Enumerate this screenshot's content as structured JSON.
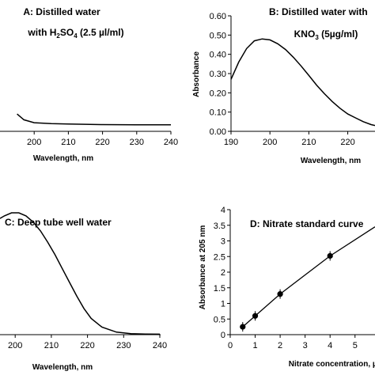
{
  "chart_data": [
    {
      "id": "A",
      "type": "line",
      "title_line1": "A: Distilled water",
      "title_line2_prefix": "with H",
      "title_line2_sub1": "2",
      "title_line2_mid": "SO",
      "title_line2_sub2": "4",
      "title_line2_suffix": " (2.5 µl/ml)",
      "xlabel": "Wavelength, nm",
      "ylabel": "",
      "x_ticks": [
        "200",
        "210",
        "220",
        "230",
        "240"
      ],
      "xlim": [
        190,
        240
      ],
      "ylim": [
        0,
        0.6
      ],
      "series": [
        {
          "x": [
            195,
            197,
            200,
            205,
            210,
            220,
            230,
            240
          ],
          "y": [
            0.09,
            0.06,
            0.045,
            0.04,
            0.038,
            0.035,
            0.034,
            0.034
          ]
        }
      ]
    },
    {
      "id": "B",
      "type": "line",
      "title_line1": "B: Distilled water with",
      "title_line2_prefix": "KNO",
      "title_line2_sub1": "3",
      "title_line2_suffix": " (5µg/ml)",
      "xlabel": "Wavelength, nm",
      "ylabel": "Absorbance",
      "x_ticks": [
        "190",
        "200",
        "210",
        "220"
      ],
      "y_ticks": [
        "0.00",
        "0.10",
        "0.20",
        "0.30",
        "0.40",
        "0.50",
        "0.60"
      ],
      "xlim": [
        190,
        227
      ],
      "ylim": [
        0,
        0.6
      ],
      "series": [
        {
          "x": [
            190,
            192,
            194,
            196,
            198,
            200,
            202,
            204,
            206,
            208,
            210,
            212,
            214,
            216,
            218,
            220,
            222,
            224,
            226,
            227
          ],
          "y": [
            0.27,
            0.36,
            0.43,
            0.47,
            0.48,
            0.475,
            0.455,
            0.425,
            0.385,
            0.34,
            0.29,
            0.24,
            0.195,
            0.155,
            0.12,
            0.09,
            0.07,
            0.05,
            0.035,
            0.03
          ]
        }
      ]
    },
    {
      "id": "C",
      "type": "line",
      "title": "C: Deep tube well water",
      "xlabel": "Wavelength, nm",
      "ylabel": "",
      "x_ticks": [
        "200",
        "210",
        "220",
        "230",
        "240"
      ],
      "xlim": [
        195.8,
        240
      ],
      "ylim": [
        0,
        1
      ],
      "series": [
        {
          "x": [
            195.8,
            197,
            199,
            201,
            203,
            205,
            207,
            209,
            211,
            213,
            215,
            217,
            219,
            221,
            224,
            228,
            232,
            236,
            240
          ],
          "y": [
            0.93,
            0.95,
            0.975,
            0.975,
            0.95,
            0.9,
            0.83,
            0.74,
            0.64,
            0.53,
            0.42,
            0.31,
            0.21,
            0.13,
            0.06,
            0.02,
            0.008,
            0.005,
            0.004
          ]
        }
      ]
    },
    {
      "id": "D",
      "type": "scatter",
      "title": "D: Nitrate standard curve",
      "xlabel": "Nitrate concentration, µg/ml",
      "ylabel": "Absorbance at 205 nm",
      "x_ticks": [
        "0",
        "1",
        "2",
        "3",
        "4",
        "5"
      ],
      "y_ticks": [
        "0",
        "0.5",
        "1",
        "1.5",
        "2",
        "2.5",
        "3",
        "3.5",
        "4"
      ],
      "xlim": [
        0,
        5.8
      ],
      "ylim": [
        0,
        4
      ],
      "series": [
        {
          "x": [
            0.5,
            1,
            2,
            4
          ],
          "y": [
            0.25,
            0.6,
            1.3,
            2.52
          ],
          "fit_line": [
            [
              0.5,
              0.25
            ],
            [
              1,
              0.6
            ],
            [
              2,
              1.3
            ],
            [
              4,
              2.52
            ],
            [
              5.8,
              3.45
            ]
          ]
        }
      ]
    }
  ]
}
